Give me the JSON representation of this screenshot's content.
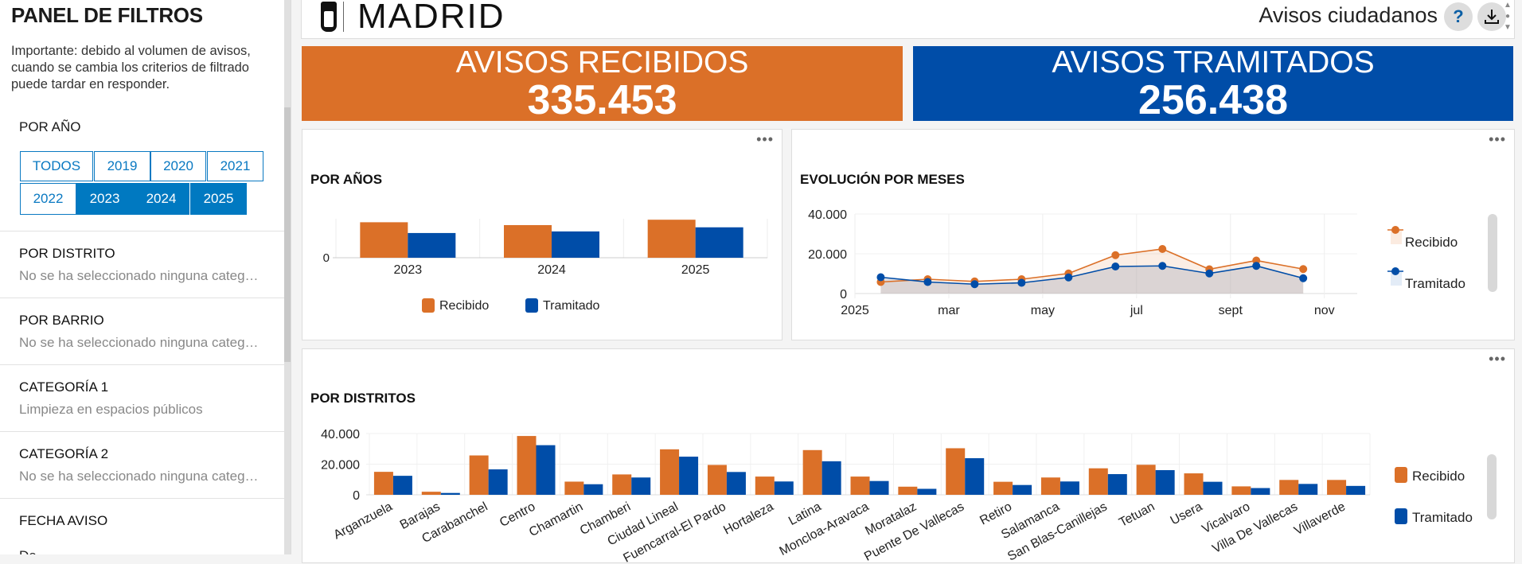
{
  "filters": {
    "title": "PANEL DE FILTROS",
    "note": "Importante: debido al volumen de avisos, cuando se cambia los criterios de filtrado puede tardar en responder.",
    "year_label": "POR AÑO",
    "years": [
      {
        "label": "TODOS",
        "selected": false
      },
      {
        "label": "2019",
        "selected": false
      },
      {
        "label": "2020",
        "selected": false
      },
      {
        "label": "2021",
        "selected": false
      },
      {
        "label": "2022",
        "selected": false
      },
      {
        "label": "2023",
        "selected": true
      },
      {
        "label": "2024",
        "selected": true
      },
      {
        "label": "2025",
        "selected": true
      }
    ],
    "sections": [
      {
        "title": "POR DISTRITO",
        "value": "No se ha seleccionado ninguna categ…"
      },
      {
        "title": "POR BARRIO",
        "value": "No se ha seleccionado ninguna categ…"
      },
      {
        "title": "CATEGORÍA 1",
        "value": "Limpieza en espacios públicos"
      },
      {
        "title": "CATEGORÍA 2",
        "value": "No se ha seleccionado ninguna categ…"
      },
      {
        "title": "FECHA AVISO",
        "value": "De"
      }
    ]
  },
  "header": {
    "logo": "MADRID",
    "title": "Avisos ciudadanos",
    "help": "?",
    "download_icon": "download-icon"
  },
  "kpis": [
    {
      "label": "AVISOS RECIBIDOS",
      "value": "335.453",
      "color": "#db7028"
    },
    {
      "label": "AVISOS TRAMITADOS",
      "value": "256.438",
      "color": "#004da8"
    }
  ],
  "colors": {
    "recibido": "#db7028",
    "tramitado": "#004da8",
    "accent": "#0079c1"
  },
  "menu_label": "•••",
  "chart_data": [
    {
      "type": "bar",
      "title": "POR AÑOS",
      "categories": [
        "2023",
        "2024",
        "2025"
      ],
      "yticks": [
        "0"
      ],
      "ylim": [
        0,
        123000
      ],
      "legend": "bottom",
      "series": [
        {
          "name": "Recibido",
          "values": [
            112000,
            103000,
            120000
          ]
        },
        {
          "name": "Tramitado",
          "values": [
            78000,
            83000,
            96000
          ]
        }
      ]
    },
    {
      "type": "area",
      "title": "EVOLUCIÓN POR MESES",
      "x": [
        "2025-01",
        "2025-02",
        "2025-03",
        "2025-04",
        "2025-05",
        "2025-06",
        "2025-07",
        "2025-08",
        "2025-09",
        "2025-10"
      ],
      "xticks": [
        "2025",
        "mar",
        "may",
        "jul",
        "sept",
        "nov"
      ],
      "yticks": [
        "0",
        "20.000",
        "40.000"
      ],
      "ylim": [
        0,
        40000
      ],
      "legend": "right",
      "series": [
        {
          "name": "Recibido",
          "values": [
            5800,
            7200,
            6100,
            7200,
            10100,
            19300,
            22400,
            12200,
            16600,
            12300
          ]
        },
        {
          "name": "Tramitado",
          "values": [
            8200,
            5800,
            4700,
            5400,
            8100,
            13600,
            13900,
            10100,
            13900,
            7700
          ]
        }
      ]
    },
    {
      "type": "bar",
      "title": "POR DISTRITOS",
      "categories": [
        "Arganzuela",
        "Barajas",
        "Carabanchel",
        "Centro",
        "Chamartin",
        "Chamberi",
        "Ciudad Lineal",
        "Fuencarral-El Pardo",
        "Hortaleza",
        "Latina",
        "Moncloa-Aravaca",
        "Moratalaz",
        "Puente De Vallecas",
        "Retiro",
        "Salamanca",
        "San Blas-Canillejas",
        "Tetuan",
        "Usera",
        "Vicalvaro",
        "Villa De Vallecas",
        "Villaverde"
      ],
      "yticks": [
        "0",
        "20.000",
        "40.000"
      ],
      "ylim": [
        0,
        40000
      ],
      "legend": "right",
      "series": [
        {
          "name": "Recibido",
          "values": [
            15000,
            2000,
            25700,
            38400,
            8600,
            13300,
            29700,
            19500,
            11900,
            29200,
            11900,
            5300,
            30400,
            8500,
            11300,
            17300,
            19600,
            14000,
            5500,
            9700,
            9700
          ]
        },
        {
          "name": "Tramitado",
          "values": [
            12400,
            1200,
            16600,
            32400,
            6900,
            11300,
            24900,
            14900,
            8700,
            21900,
            9000,
            3900,
            23900,
            6400,
            8700,
            13500,
            16100,
            8500,
            4400,
            7100,
            5800
          ]
        }
      ]
    }
  ]
}
